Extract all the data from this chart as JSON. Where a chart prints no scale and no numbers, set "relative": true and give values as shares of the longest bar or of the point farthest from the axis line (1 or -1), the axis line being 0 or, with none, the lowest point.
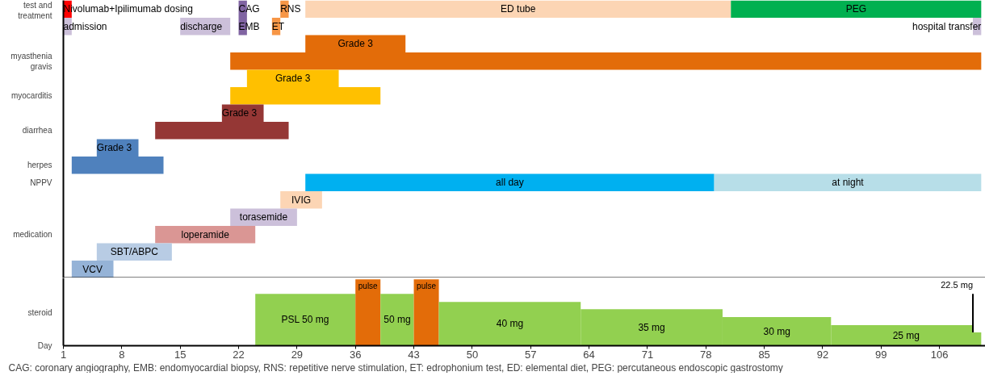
{
  "chart_data": [
    {
      "type": "bar",
      "orientation": "horizontal",
      "categories": [
        "test and treatment",
        null,
        null,
        "myasthenia gravis",
        null,
        "myocarditis",
        null,
        "diarrhea",
        null,
        "herpes",
        "NPPV",
        null,
        null,
        "medication",
        null,
        null
      ],
      "xlim": [
        1,
        111.5
      ],
      "tick_labels": "y",
      "series": [
        {
          "name": "Nivolumab+Ipilimumab dosing",
          "color": "#ff0000",
          "values": [
            1,
            null,
            null,
            null,
            null,
            null,
            null,
            null,
            null,
            null,
            null,
            null,
            null,
            null,
            null,
            null
          ],
          "base": [
            1,
            null,
            null,
            null,
            null,
            null,
            null,
            null,
            null,
            null,
            null,
            null,
            null,
            null,
            null,
            null
          ]
        },
        {
          "name": "CAG",
          "color": "#8064a2",
          "values": [
            1,
            null,
            null,
            null,
            null,
            null,
            null,
            null,
            null,
            null,
            null,
            null,
            null,
            null,
            null,
            null
          ],
          "base": [
            22,
            null,
            null,
            null,
            null,
            null,
            null,
            null,
            null,
            null,
            null,
            null,
            null,
            null,
            null,
            null
          ]
        },
        {
          "name": "RNS",
          "color": "#f79646",
          "values": [
            1,
            null,
            null,
            null,
            null,
            null,
            null,
            null,
            null,
            null,
            null,
            null,
            null,
            null,
            null,
            null
          ],
          "base": [
            27,
            null,
            null,
            null,
            null,
            null,
            null,
            null,
            null,
            null,
            null,
            null,
            null,
            null,
            null,
            null
          ]
        },
        {
          "name": "ED tube",
          "color": "#fcd5b4",
          "values": [
            51,
            null,
            null,
            null,
            null,
            null,
            null,
            null,
            null,
            null,
            null,
            null,
            null,
            null,
            null,
            null
          ],
          "base": [
            30,
            null,
            null,
            null,
            null,
            null,
            null,
            null,
            null,
            null,
            null,
            null,
            null,
            null,
            null,
            null
          ]
        },
        {
          "name": "PEG",
          "color": "#00b050",
          "values": [
            30,
            null,
            null,
            null,
            null,
            null,
            null,
            null,
            null,
            null,
            null,
            null,
            null,
            null,
            null,
            null
          ],
          "base": [
            81,
            null,
            null,
            null,
            null,
            null,
            null,
            null,
            null,
            null,
            null,
            null,
            null,
            null,
            null,
            null
          ]
        },
        {
          "name": "admission",
          "color": "#ccc0da",
          "values": [
            null,
            1,
            null,
            null,
            null,
            null,
            null,
            null,
            null,
            null,
            null,
            null,
            null,
            null,
            null,
            null
          ],
          "base": [
            null,
            1,
            null,
            null,
            null,
            null,
            null,
            null,
            null,
            null,
            null,
            null,
            null,
            null,
            null,
            null
          ]
        },
        {
          "name": "discharge",
          "color": "#ccc0da",
          "values": [
            null,
            6,
            null,
            null,
            null,
            null,
            null,
            null,
            null,
            null,
            null,
            null,
            null,
            null,
            null,
            null
          ],
          "base": [
            null,
            15,
            null,
            null,
            null,
            null,
            null,
            null,
            null,
            null,
            null,
            null,
            null,
            null,
            null,
            null
          ]
        },
        {
          "name": "EMB",
          "color": "#8064a2",
          "values": [
            null,
            1,
            null,
            null,
            null,
            null,
            null,
            null,
            null,
            null,
            null,
            null,
            null,
            null,
            null,
            null
          ],
          "base": [
            null,
            22,
            null,
            null,
            null,
            null,
            null,
            null,
            null,
            null,
            null,
            null,
            null,
            null,
            null,
            null
          ]
        },
        {
          "name": "ET",
          "color": "#f79646",
          "values": [
            null,
            1,
            null,
            null,
            null,
            null,
            null,
            null,
            null,
            null,
            null,
            null,
            null,
            null,
            null,
            null
          ],
          "base": [
            null,
            26,
            null,
            null,
            null,
            null,
            null,
            null,
            null,
            null,
            null,
            null,
            null,
            null,
            null,
            null
          ]
        },
        {
          "name": "hospital transfer",
          "color": "#ccc0da",
          "values": [
            null,
            1,
            null,
            null,
            null,
            null,
            null,
            null,
            null,
            null,
            null,
            null,
            null,
            null,
            null,
            null
          ],
          "base": [
            null,
            110,
            null,
            null,
            null,
            null,
            null,
            null,
            null,
            null,
            null,
            null,
            null,
            null,
            null,
            null
          ]
        },
        {
          "name": "Grade 3",
          "color": "#e36c09",
          "values": [
            null,
            null,
            12,
            null,
            null,
            null,
            null,
            null,
            null,
            null,
            null,
            null,
            null,
            null,
            null,
            null
          ],
          "base": [
            null,
            null,
            30,
            null,
            null,
            null,
            null,
            null,
            null,
            null,
            null,
            null,
            null,
            null,
            null,
            null
          ]
        },
        {
          "color": "#e36c09",
          "values": [
            null,
            null,
            null,
            90,
            null,
            null,
            null,
            null,
            null,
            null,
            null,
            null,
            null,
            null,
            null,
            null
          ],
          "base": [
            null,
            null,
            null,
            21,
            null,
            null,
            null,
            null,
            null,
            null,
            null,
            null,
            null,
            null,
            null,
            null
          ]
        },
        {
          "name": "Grade 3",
          "color": "#ffc000",
          "values": [
            null,
            null,
            null,
            null,
            11,
            null,
            null,
            null,
            null,
            null,
            null,
            null,
            null,
            null,
            null,
            null
          ],
          "base": [
            null,
            null,
            null,
            null,
            23,
            null,
            null,
            null,
            null,
            null,
            null,
            null,
            null,
            null,
            null,
            null
          ]
        },
        {
          "color": "#ffc000",
          "values": [
            null,
            null,
            null,
            null,
            null,
            18,
            null,
            null,
            null,
            null,
            null,
            null,
            null,
            null,
            null,
            null
          ],
          "base": [
            null,
            null,
            null,
            null,
            null,
            21,
            null,
            null,
            null,
            null,
            null,
            null,
            null,
            null,
            null,
            null
          ]
        },
        {
          "name": "Grade 3",
          "color": "#953735",
          "values": [
            null,
            null,
            null,
            null,
            null,
            null,
            5,
            null,
            null,
            null,
            null,
            null,
            null,
            null,
            null,
            null
          ],
          "base": [
            null,
            null,
            null,
            null,
            null,
            null,
            20,
            null,
            null,
            null,
            null,
            null,
            null,
            null,
            null,
            null
          ]
        },
        {
          "color": "#953735",
          "values": [
            null,
            null,
            null,
            null,
            null,
            null,
            null,
            16,
            null,
            null,
            null,
            null,
            null,
            null,
            null,
            null
          ],
          "base": [
            null,
            null,
            null,
            null,
            null,
            null,
            null,
            12,
            null,
            null,
            null,
            null,
            null,
            null,
            null,
            null
          ]
        },
        {
          "name": "Grade 3",
          "color": "#4f81bd",
          "values": [
            null,
            null,
            null,
            null,
            null,
            null,
            null,
            null,
            5,
            null,
            null,
            null,
            null,
            null,
            null,
            null
          ],
          "base": [
            null,
            null,
            null,
            null,
            null,
            null,
            null,
            null,
            5,
            null,
            null,
            null,
            null,
            null,
            null,
            null
          ]
        },
        {
          "color": "#4f81bd",
          "values": [
            null,
            null,
            null,
            null,
            null,
            null,
            null,
            null,
            null,
            11,
            null,
            null,
            null,
            null,
            null,
            null
          ],
          "base": [
            null,
            null,
            null,
            null,
            null,
            null,
            null,
            null,
            null,
            2,
            null,
            null,
            null,
            null,
            null,
            null
          ]
        },
        {
          "name": "all day",
          "color": "#00b0f0",
          "values": [
            null,
            null,
            null,
            null,
            null,
            null,
            null,
            null,
            null,
            null,
            49,
            null,
            null,
            null,
            null,
            null
          ],
          "base": [
            null,
            null,
            null,
            null,
            null,
            null,
            null,
            null,
            null,
            null,
            30,
            null,
            null,
            null,
            null,
            null
          ]
        },
        {
          "name": "at night",
          "color": "#b7dee8",
          "values": [
            null,
            null,
            null,
            null,
            null,
            null,
            null,
            null,
            null,
            null,
            32,
            null,
            null,
            null,
            null,
            null
          ],
          "base": [
            null,
            null,
            null,
            null,
            null,
            null,
            null,
            null,
            null,
            null,
            79,
            null,
            null,
            null,
            null,
            null
          ]
        },
        {
          "name": "IVIG",
          "color": "#fcd5b4",
          "values": [
            null,
            null,
            null,
            null,
            null,
            null,
            null,
            null,
            null,
            null,
            null,
            5,
            null,
            null,
            null,
            null
          ],
          "base": [
            null,
            null,
            null,
            null,
            null,
            null,
            null,
            null,
            null,
            null,
            null,
            27,
            null,
            null,
            null,
            null
          ]
        },
        {
          "name": "torasemide",
          "color": "#ccc0da",
          "values": [
            null,
            null,
            null,
            null,
            null,
            null,
            null,
            null,
            null,
            null,
            null,
            null,
            8,
            null,
            null,
            null
          ],
          "base": [
            null,
            null,
            null,
            null,
            null,
            null,
            null,
            null,
            null,
            null,
            null,
            null,
            21,
            null,
            null,
            null
          ]
        },
        {
          "name": "loperamide",
          "color": "#da9694",
          "values": [
            null,
            null,
            null,
            null,
            null,
            null,
            null,
            null,
            null,
            null,
            null,
            null,
            null,
            12,
            null,
            null
          ],
          "base": [
            null,
            null,
            null,
            null,
            null,
            null,
            null,
            null,
            null,
            null,
            null,
            null,
            null,
            12,
            null,
            null
          ]
        },
        {
          "name": "SBT/ABPC",
          "color": "#b8cce4",
          "values": [
            null,
            null,
            null,
            null,
            null,
            null,
            null,
            null,
            null,
            null,
            null,
            null,
            null,
            null,
            9,
            null
          ],
          "base": [
            null,
            null,
            null,
            null,
            null,
            null,
            null,
            null,
            null,
            null,
            null,
            null,
            null,
            null,
            5,
            null
          ]
        },
        {
          "name": "VCV",
          "color": "#95b3d7",
          "values": [
            null,
            null,
            null,
            null,
            null,
            null,
            null,
            null,
            null,
            null,
            null,
            null,
            null,
            null,
            null,
            5
          ],
          "base": [
            null,
            null,
            null,
            null,
            null,
            null,
            null,
            null,
            null,
            null,
            null,
            null,
            null,
            null,
            null,
            2
          ]
        }
      ]
    },
    {
      "type": "area",
      "ylabel": "steroid",
      "xlabel": "Day",
      "relative": true,
      "xlim": [
        1,
        111.5
      ],
      "xticks": [
        1,
        8,
        15,
        22,
        29,
        36,
        43,
        50,
        57,
        64,
        71,
        78,
        85,
        92,
        99,
        106
      ],
      "tick_labels": "x",
      "series": [
        {
          "name": "PSL 50 mg",
          "color": "#92d050",
          "x": [
            24,
            36
          ],
          "values": [
            0.78,
            0.78
          ]
        },
        {
          "name": "pulse",
          "color": "#e36c09",
          "x": [
            36,
            39
          ],
          "values": [
            1,
            1
          ]
        },
        {
          "name": "50 mg",
          "color": "#92d050",
          "x": [
            39,
            43
          ],
          "values": [
            0.78,
            0.78
          ]
        },
        {
          "name": "pulse",
          "color": "#e36c09",
          "x": [
            43,
            46
          ],
          "values": [
            1,
            1
          ]
        },
        {
          "name": "40 mg",
          "color": "#92d050",
          "x": [
            46,
            63
          ],
          "values": [
            0.66,
            0.66
          ]
        },
        {
          "name": "35 mg",
          "color": "#92d050",
          "x": [
            63,
            80
          ],
          "values": [
            0.55,
            0.55
          ]
        },
        {
          "name": "30 mg",
          "color": "#92d050",
          "x": [
            80,
            93
          ],
          "values": [
            0.43,
            0.43
          ]
        },
        {
          "name": "25 mg",
          "color": "#92d050",
          "x": [
            93,
            110,
            110,
            111
          ],
          "values": [
            0.31,
            0.31,
            0.2,
            0.2
          ]
        },
        {
          "name": "22.5 mg",
          "type": "line",
          "color": "#000000",
          "x": [
            110,
            110
          ],
          "values": [
            0.2,
            0.78
          ]
        }
      ],
      "annotations": [
        "CAG: coronary angiography, EMB: endomyocardial biopsy, RNS: repetitive nerve stimulation, ET: edrophonium test, ED: elemental diet, PEG: percutaneous endoscopic gastrostomy"
      ]
    }
  ]
}
